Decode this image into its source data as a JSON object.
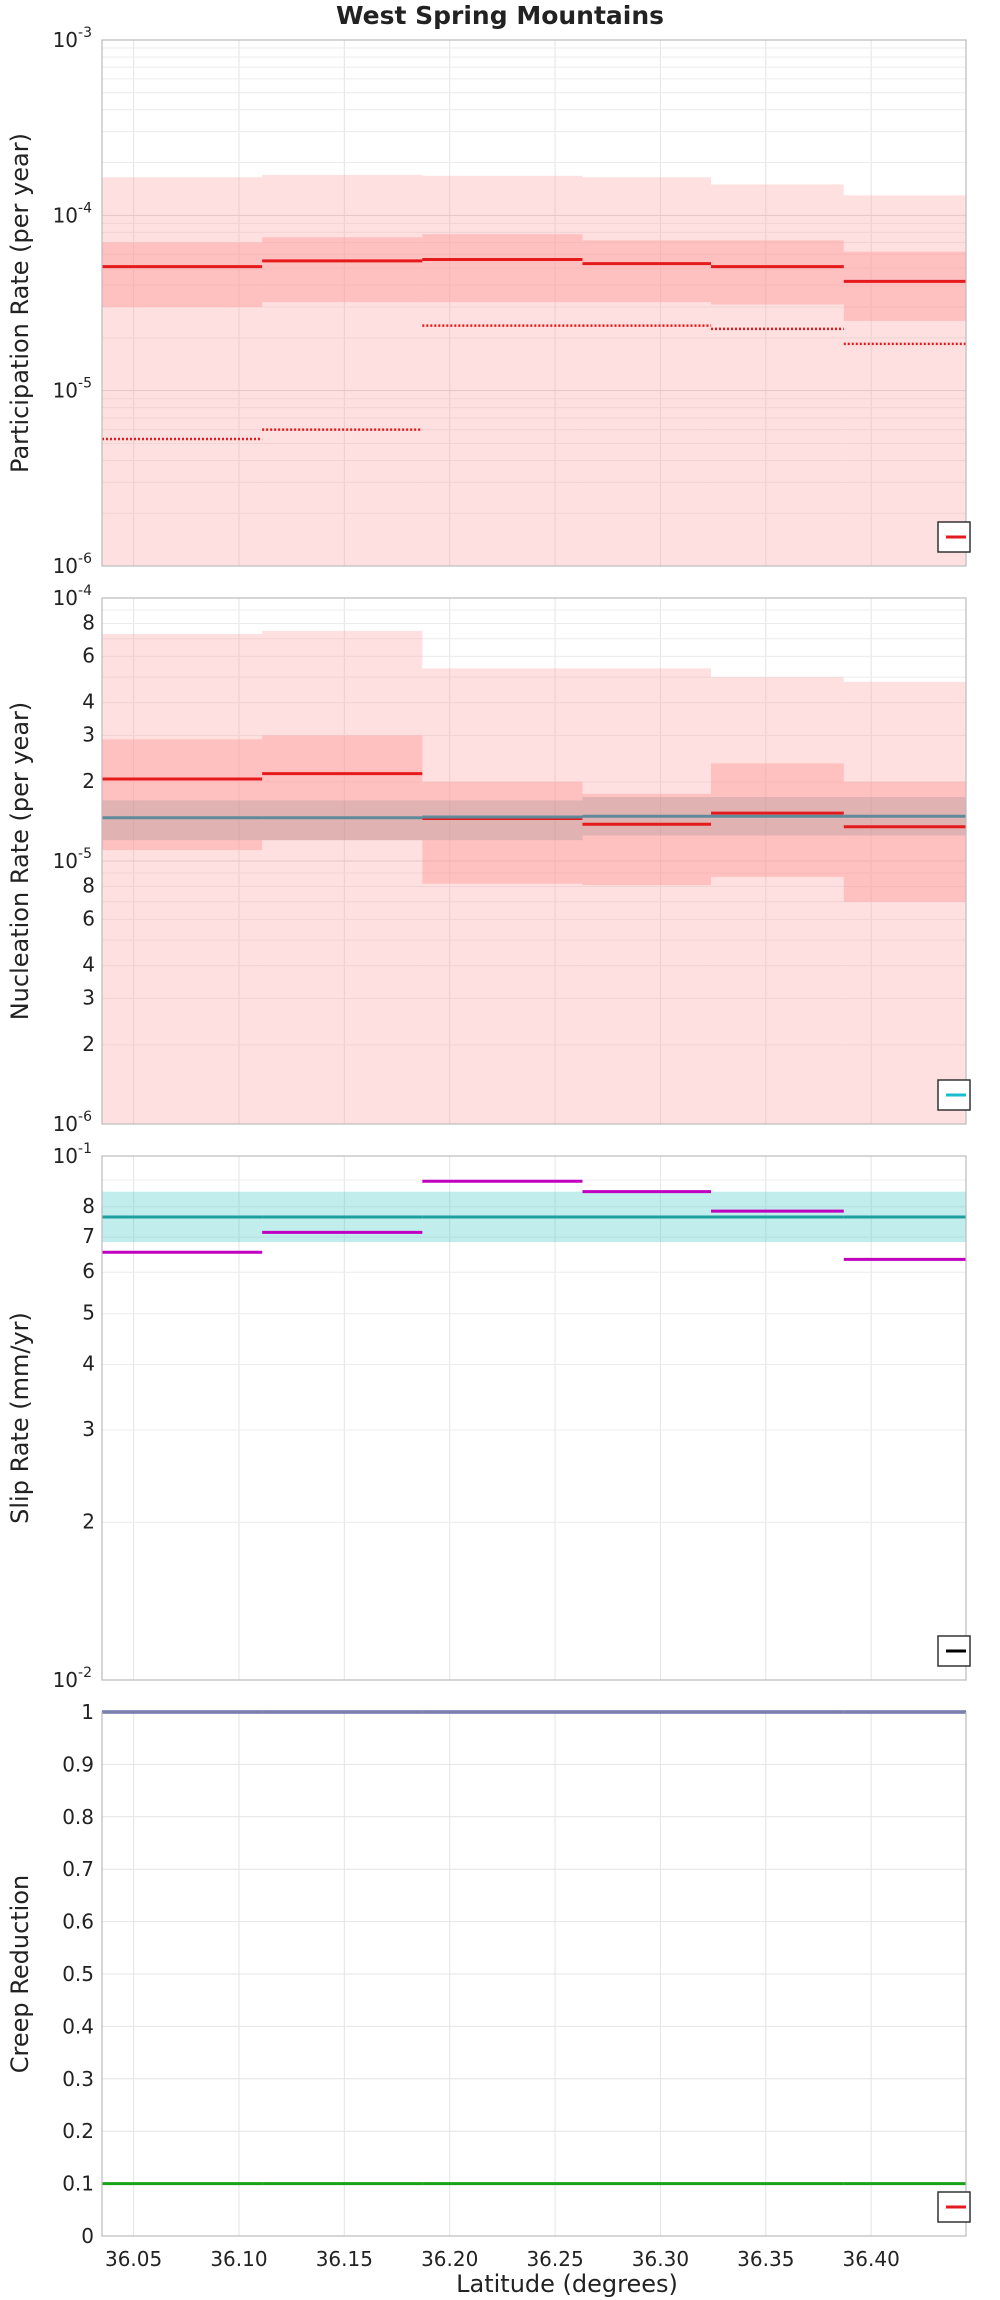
{
  "figure": {
    "title": "West Spring Mountains",
    "xlabel": "Latitude (degrees)"
  },
  "chart_data": [
    {
      "type": "line",
      "ylabel": "Participation Rate (per year)",
      "yscale": "log",
      "ylim": [
        1e-06,
        0.001
      ],
      "xlim": [
        36.035,
        36.445
      ],
      "grid": true,
      "legend": "bottom-right",
      "x_ticks": [
        "36.05",
        "36.10",
        "36.15",
        "36.20",
        "36.25",
        "36.30",
        "36.35",
        "36.40"
      ],
      "y_ticks": [
        {
          "v": 1e-06,
          "base": "10",
          "exp": "-6"
        },
        {
          "v": 1e-05,
          "base": "10",
          "exp": "-5"
        },
        {
          "v": 0.0001,
          "base": "10",
          "exp": "-4"
        },
        {
          "v": 0.001,
          "base": "10",
          "exp": "-3"
        }
      ],
      "segments": [
        36.035,
        36.111,
        36.187,
        36.263,
        36.324,
        36.387,
        36.445
      ],
      "bands": [
        {
          "color": "#ff9999",
          "opacity": 0.3,
          "lower": [
            1e-06,
            1e-06,
            1e-06,
            1e-06,
            1e-06,
            1e-06
          ],
          "upper": [
            0.000165,
            0.00017,
            0.000168,
            0.000165,
            0.00015,
            0.00013
          ]
        },
        {
          "color": "#ff9999",
          "opacity": 0.45,
          "lower": [
            3e-05,
            3.2e-05,
            3.2e-05,
            3.2e-05,
            3.1e-05,
            2.5e-05
          ],
          "upper": [
            7e-05,
            7.5e-05,
            7.8e-05,
            7.2e-05,
            7.2e-05,
            6.2e-05
          ]
        }
      ],
      "series": [
        {
          "color": "#e41a1c",
          "style": "solid",
          "values": [
            5.1e-05,
            5.5e-05,
            5.6e-05,
            5.3e-05,
            5.1e-05,
            4.2e-05
          ]
        },
        {
          "color": "#e41a1c",
          "style": "dotted",
          "values": [
            5.3e-06,
            6e-06,
            2.35e-05,
            2.35e-05,
            2.25e-05,
            1.85e-05
          ]
        }
      ],
      "legend_swatch": "#e41a1c"
    },
    {
      "type": "line",
      "ylabel": "Nucleation Rate (per year)",
      "yscale": "log",
      "ylim": [
        1e-06,
        0.0001
      ],
      "xlim": [
        36.035,
        36.445
      ],
      "grid": true,
      "legend": "bottom-right",
      "x_ticks": [],
      "y_ticks": [
        {
          "v": 1e-06,
          "base": "10",
          "exp": "-6"
        },
        {
          "v": 2e-06,
          "base": "2"
        },
        {
          "v": 3e-06,
          "base": "3"
        },
        {
          "v": 4e-06,
          "base": "4"
        },
        {
          "v": 6e-06,
          "base": "6"
        },
        {
          "v": 8e-06,
          "base": "8"
        },
        {
          "v": 1e-05,
          "base": "10",
          "exp": "-5"
        },
        {
          "v": 2e-05,
          "base": "2"
        },
        {
          "v": 3e-05,
          "base": "3"
        },
        {
          "v": 4e-05,
          "base": "4"
        },
        {
          "v": 6e-05,
          "base": "6"
        },
        {
          "v": 8e-05,
          "base": "8"
        },
        {
          "v": 0.0001,
          "base": "10",
          "exp": "-4"
        }
      ],
      "segments": [
        36.035,
        36.111,
        36.187,
        36.263,
        36.324,
        36.387,
        36.445
      ],
      "bands": [
        {
          "color": "#ff9999",
          "opacity": 0.3,
          "lower": [
            1e-06,
            1e-06,
            1e-06,
            1e-06,
            1e-06,
            1e-06
          ],
          "upper": [
            7.3e-05,
            7.5e-05,
            5.4e-05,
            5.4e-05,
            5e-05,
            4.8e-05
          ]
        },
        {
          "color": "#ff9999",
          "opacity": 0.45,
          "lower": [
            1.1e-05,
            1.2e-05,
            8.2e-06,
            8.1e-06,
            8.7e-06,
            7e-06
          ],
          "upper": [
            2.9e-05,
            3e-05,
            2e-05,
            1.8e-05,
            2.35e-05,
            2e-05
          ]
        },
        {
          "color": "#888888",
          "opacity": 0.25,
          "lower": [
            1.2e-05,
            1.2e-05,
            1.2e-05,
            1.25e-05,
            1.25e-05,
            1.25e-05
          ],
          "upper": [
            1.7e-05,
            1.7e-05,
            1.7e-05,
            1.75e-05,
            1.75e-05,
            1.75e-05
          ]
        }
      ],
      "series": [
        {
          "color": "#e41a1c",
          "style": "solid",
          "values": [
            2.05e-05,
            2.15e-05,
            1.45e-05,
            1.38e-05,
            1.52e-05,
            1.35e-05
          ]
        },
        {
          "color": "#5f8a99",
          "style": "solid",
          "values": [
            1.46e-05,
            1.46e-05,
            1.47e-05,
            1.48e-05,
            1.48e-05,
            1.48e-05
          ]
        }
      ],
      "legend_swatch": "#17becf"
    },
    {
      "type": "line",
      "ylabel": "Slip Rate (mm/yr)",
      "yscale": "log",
      "ylim": [
        0.01,
        0.1
      ],
      "xlim": [
        36.035,
        36.445
      ],
      "grid": true,
      "legend": "bottom-right",
      "x_ticks": [],
      "y_ticks": [
        {
          "v": 0.01,
          "base": "10",
          "exp": "-2"
        },
        {
          "v": 0.02,
          "base": "2"
        },
        {
          "v": 0.03,
          "base": "3"
        },
        {
          "v": 0.04,
          "base": "4"
        },
        {
          "v": 0.05,
          "base": "5"
        },
        {
          "v": 0.06,
          "base": "6"
        },
        {
          "v": 0.07,
          "base": "7"
        },
        {
          "v": 0.08,
          "base": "8"
        },
        {
          "v": 0.1,
          "base": "10",
          "exp": "-1"
        }
      ],
      "segments": [
        36.035,
        36.111,
        36.187,
        36.263,
        36.324,
        36.387,
        36.445
      ],
      "bands": [
        {
          "color": "#40c8c8",
          "opacity": 0.32,
          "lower": [
            0.0685,
            0.0685,
            0.0685,
            0.0685,
            0.0685,
            0.0685
          ],
          "upper": [
            0.0855,
            0.0855,
            0.0855,
            0.0855,
            0.0855,
            0.0855
          ]
        }
      ],
      "series": [
        {
          "color": "#1f9e9e",
          "style": "solid",
          "values": [
            0.0765,
            0.0765,
            0.0765,
            0.0765,
            0.0765,
            0.0765
          ]
        },
        {
          "color": "#c000c0",
          "style": "solid",
          "values": [
            0.0655,
            0.0715,
            0.0895,
            0.0855,
            0.0785,
            0.0635
          ]
        }
      ],
      "legend_swatch": "#000000"
    },
    {
      "type": "line",
      "ylabel": "Creep Reduction",
      "yscale": "linear",
      "ylim": [
        0,
        1
      ],
      "xlim": [
        36.035,
        36.445
      ],
      "grid": true,
      "legend": "bottom-right",
      "x_ticks": [
        "36.05",
        "36.10",
        "36.15",
        "36.20",
        "36.25",
        "36.30",
        "36.35",
        "36.40"
      ],
      "y_ticks": [
        {
          "v": 0,
          "base": "0"
        },
        {
          "v": 0.1,
          "base": "0.1"
        },
        {
          "v": 0.2,
          "base": "0.2"
        },
        {
          "v": 0.3,
          "base": "0.3"
        },
        {
          "v": 0.4,
          "base": "0.4"
        },
        {
          "v": 0.5,
          "base": "0.5"
        },
        {
          "v": 0.6,
          "base": "0.6"
        },
        {
          "v": 0.7,
          "base": "0.7"
        },
        {
          "v": 0.8,
          "base": "0.8"
        },
        {
          "v": 0.9,
          "base": "0.9"
        },
        {
          "v": 1,
          "base": "1"
        }
      ],
      "segments": [
        36.035,
        36.111,
        36.187,
        36.263,
        36.324,
        36.387,
        36.445
      ],
      "bands": [],
      "series": [
        {
          "color": "#1f2a8a",
          "style": "solid",
          "values": [
            1,
            1,
            1,
            1,
            1,
            1
          ]
        },
        {
          "color": "#17a317",
          "style": "solid",
          "values": [
            0.1,
            0.1,
            0.1,
            0.1,
            0.1,
            0.1
          ]
        }
      ],
      "legend_swatch": "#e41a1c"
    }
  ]
}
